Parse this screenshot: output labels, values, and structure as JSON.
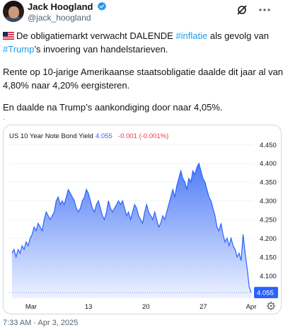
{
  "author": {
    "name": "Jack Hoogland",
    "handle": "@jack_hoogland"
  },
  "tweet": {
    "line1_pre": "De obligatiemarkt verwacht DALENDE ",
    "line1_tag": "#inflatie",
    "line1_post": " als gevolg van",
    "line2_tag": "#Trump",
    "line2_post": "’s invoering van handelstarieven.",
    "line3": "Rente op 10-jarige Amerikaanse staatsobligatie daalde dit jaar al van",
    "line4": "4,80% naar 4,20% eergisteren.",
    "line5": "En daalde na Trump’s aankondiging door naar 4,05%.",
    "flag_icon": "us-flag-icon",
    "dot": "."
  },
  "chart_data": {
    "type": "area",
    "title": "US 10 Year Note Bond Yield",
    "current_value": "4.055",
    "change": "-0.001 (-0.001%)",
    "price_tag": "4.055",
    "x_tick_labels": [
      "Mar",
      "13",
      "20",
      "27",
      "Apr"
    ],
    "y_tick_labels": [
      "4.450",
      "4.400",
      "4.350",
      "4.300",
      "4.250",
      "4.200",
      "4.150",
      "4.100"
    ],
    "ylim": [
      4.04,
      4.46
    ],
    "series": [
      {
        "values": [
          4.16,
          4.17,
          4.15,
          4.17,
          4.16,
          4.18,
          4.17,
          4.19,
          4.18,
          4.2,
          4.21,
          4.23,
          4.22,
          4.24,
          4.23,
          4.22,
          4.25,
          4.27,
          4.26,
          4.25,
          4.26,
          4.27,
          4.3,
          4.31,
          4.29,
          4.3,
          4.29,
          4.31,
          4.33,
          4.32,
          4.31,
          4.3,
          4.28,
          4.27,
          4.28,
          4.3,
          4.31,
          4.33,
          4.32,
          4.3,
          4.28,
          4.27,
          4.29,
          4.3,
          4.28,
          4.26,
          4.25,
          4.27,
          4.3,
          4.28,
          4.27,
          4.28,
          4.29,
          4.3,
          4.29,
          4.3,
          4.28,
          4.26,
          4.27,
          4.25,
          4.27,
          4.29,
          4.28,
          4.26,
          4.25,
          4.24,
          4.27,
          4.29,
          4.27,
          4.26,
          4.25,
          4.27,
          4.25,
          4.23,
          4.24,
          4.26,
          4.25,
          4.27,
          4.29,
          4.31,
          4.33,
          4.31,
          4.34,
          4.36,
          4.38,
          4.36,
          4.35,
          4.33,
          4.36,
          4.35,
          4.38,
          4.37,
          4.39,
          4.4,
          4.38,
          4.36,
          4.35,
          4.33,
          4.31,
          4.3,
          4.28,
          4.26,
          4.23,
          4.22,
          4.24,
          4.21,
          4.19,
          4.2,
          4.18,
          4.2,
          4.18,
          4.17,
          4.15,
          4.16,
          4.14,
          4.21,
          4.16,
          4.12,
          4.07,
          4.055
        ]
      }
    ],
    "colors": {
      "line": "#2962ff",
      "fill_top": "#4f7cf7",
      "fill_bottom": "#eef2ff",
      "tag": "#2962ff",
      "change": "#f23645"
    }
  },
  "timestamp": "7:33 AM · Apr 3, 2025"
}
